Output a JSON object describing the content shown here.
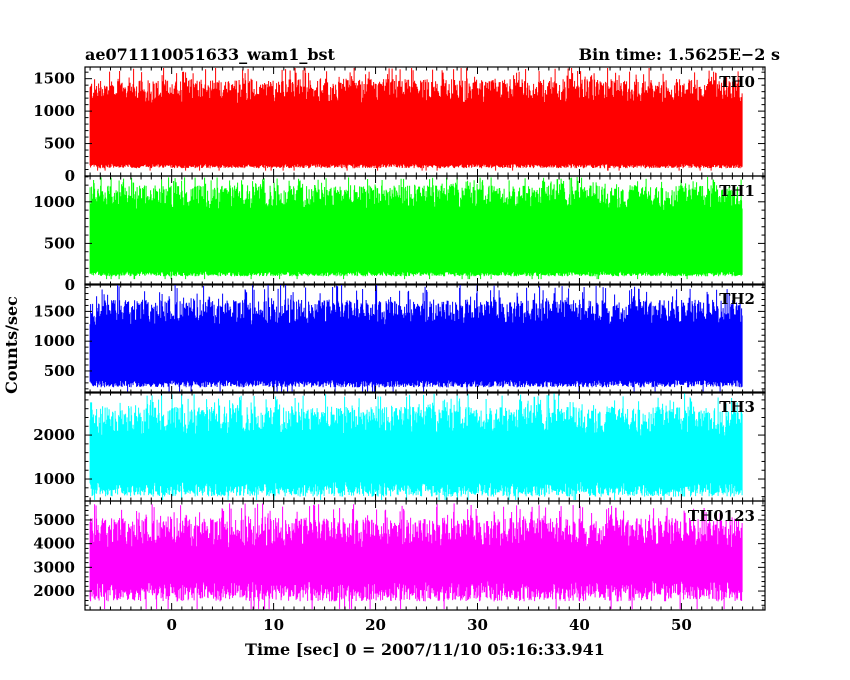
{
  "header": {
    "title": "ae071110051633_wam1_bst",
    "bin_time": "Bin time: 1.5625E−2 s"
  },
  "chart_data": {
    "type": "line",
    "title": "ae071110051633_wam1_bst",
    "xlabel": "Time [sec] 0 = 2007/11/10 05:16:33.941",
    "ylabel": "Counts/sec",
    "xlim": [
      -8.5,
      58.2
    ],
    "xticks": [
      0,
      10,
      20,
      30,
      40,
      50
    ],
    "data_x_range": [
      -8.0,
      56.0
    ],
    "grid": false,
    "panels": [
      {
        "name": "TH0",
        "color": "#ff0000",
        "ylim": [
          0,
          1680
        ],
        "yticks": [
          0,
          500,
          1000,
          1500
        ],
        "mean": 700,
        "low": 150,
        "high": 1500,
        "high_max": 1680
      },
      {
        "name": "TH1",
        "color": "#00ff00",
        "ylim": [
          0,
          1310
        ],
        "yticks": [
          0,
          500,
          1000
        ],
        "mean": 600,
        "low": 130,
        "high": 1200,
        "high_max": 1300
      },
      {
        "name": "TH2",
        "color": "#0000ff",
        "ylim": [
          130,
          1960
        ],
        "yticks": [
          500,
          1000,
          1500
        ],
        "mean": 900,
        "low": 280,
        "high": 1700,
        "high_max": 1960
      },
      {
        "name": "TH3",
        "color": "#00ffff",
        "ylim": [
          500,
          2980
        ],
        "yticks": [
          1000,
          2000
        ],
        "mean": 1650,
        "low": 750,
        "high": 2650,
        "high_max": 2950
      },
      {
        "name": "TH0123",
        "color": "#ff00ff",
        "ylim": [
          1200,
          5800
        ],
        "yticks": [
          2000,
          3000,
          4000,
          5000
        ],
        "mean": 3350,
        "low": 1950,
        "high": 5100,
        "high_max": 5700
      }
    ]
  }
}
